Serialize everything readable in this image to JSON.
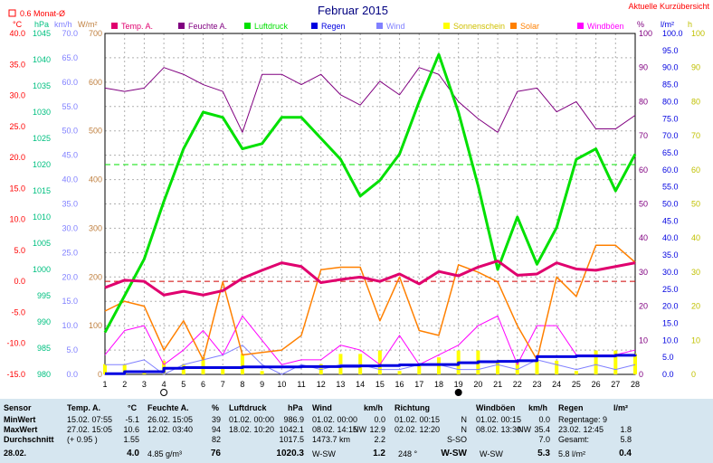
{
  "title": "Februar 2015",
  "corner_label": "Aktuelle Kurzübersicht",
  "monthly_avg_label": "0.6 Monat-Ø",
  "colors": {
    "temp": "#e0006e",
    "humidity": "#800080",
    "pressure": "#00e000",
    "rain": "#0000e0",
    "wind": "#8080ff",
    "sun": "#ffff00",
    "solar": "#ff8000",
    "gust": "#ff00ff",
    "red_axis": "#ff0000",
    "mint_axis": "#00c080",
    "tan_axis": "#c08040",
    "stats_bg": "#d6e6f0"
  },
  "legend": [
    {
      "label": "Temp. A.",
      "color": "#e0006e"
    },
    {
      "label": "Feuchte A.",
      "color": "#800080"
    },
    {
      "label": "Luftdruck",
      "color": "#00e000"
    },
    {
      "label": "Regen",
      "color": "#0000e0"
    },
    {
      "label": "Wind",
      "color": "#8080ff"
    },
    {
      "label": "Sonnenschein",
      "color": "#ffff00"
    },
    {
      "label": "Solar",
      "color": "#ff8000"
    },
    {
      "label": "Windböen",
      "color": "#ff00ff"
    }
  ],
  "axis_units": {
    "temp": "°C",
    "hpa": "hPa",
    "kmh": "km/h",
    "wm2": "W/m²",
    "pct": "%",
    "lm2": "l/m²",
    "h": "h"
  },
  "chart_data": {
    "type": "line",
    "title": "Februar 2015",
    "x": [
      1,
      2,
      3,
      4,
      5,
      6,
      7,
      8,
      9,
      10,
      11,
      12,
      13,
      14,
      15,
      16,
      17,
      18,
      19,
      20,
      21,
      22,
      23,
      24,
      25,
      26,
      27,
      28
    ],
    "xlim": [
      1,
      28
    ],
    "axes": {
      "temp_c": {
        "range": [
          -15,
          40
        ],
        "ticks": [
          "40.0",
          "35.0",
          "30.0",
          "25.0",
          "20.0",
          "15.0",
          "10.0",
          "5.0",
          "0.0",
          "-5.0",
          "-10.0",
          "-15.0"
        ]
      },
      "pressure_hpa": {
        "range": [
          980,
          1045
        ],
        "ticks": [
          "1045",
          "1040",
          "1035",
          "1030",
          "1025",
          "1020",
          "1015",
          "1010",
          "1005",
          "1000",
          "995",
          "990",
          "985",
          "980"
        ]
      },
      "wind_kmh": {
        "range": [
          0,
          70
        ],
        "ticks": [
          "70.0",
          "65.0",
          "60.0",
          "55.0",
          "50.0",
          "45.0",
          "40.0",
          "35.0",
          "30.0",
          "25.0",
          "20.0",
          "15.0",
          "10.0",
          "5.0",
          "0.0"
        ]
      },
      "solar_wm2": {
        "range": [
          0,
          700
        ],
        "ticks": [
          "700",
          "600",
          "500",
          "400",
          "300",
          "200",
          "100",
          "0"
        ]
      },
      "humidity_pct": {
        "range": [
          0,
          100
        ],
        "ticks": [
          "100",
          "90",
          "80",
          "70",
          "60",
          "50",
          "40",
          "30",
          "20",
          "10",
          "0"
        ]
      },
      "rain_lm2": {
        "range": [
          0,
          100
        ],
        "ticks": [
          "100.0",
          "95.0",
          "90.0",
          "85.0",
          "80.0",
          "75.0",
          "70.0",
          "65.0",
          "60.0",
          "55.0",
          "50.0",
          "45.0",
          "40.0",
          "35.0",
          "30.0",
          "25.0",
          "20.0",
          "15.0",
          "10.0",
          "5.0",
          "0.0"
        ]
      },
      "sun_h": {
        "range": [
          0,
          100
        ],
        "ticks": [
          "100",
          "90",
          "80",
          "70",
          "60",
          "50",
          "40",
          "30",
          "20",
          "10",
          "0"
        ]
      }
    },
    "reference_lines": [
      {
        "series": "Luftdruck",
        "value": 1020
      },
      {
        "series": "Temp. A.",
        "value": 0.0
      }
    ],
    "moon_phases": [
      {
        "x": 4,
        "phase": "full"
      },
      {
        "x": 19,
        "phase": "new"
      }
    ],
    "series": [
      {
        "name": "Temp. A.",
        "axis": "temp_c",
        "values": [
          -1.0,
          0.2,
          0.0,
          -2.2,
          -1.6,
          -2.2,
          -1.5,
          0.5,
          1.8,
          3.0,
          2.4,
          -0.2,
          0.3,
          0.7,
          0.0,
          1.2,
          -0.4,
          1.6,
          0.9,
          2.3,
          3.3,
          1.0,
          1.2,
          3.0,
          2.0,
          1.8,
          2.4,
          3.0
        ]
      },
      {
        "name": "Feuchte A.",
        "axis": "humidity_pct",
        "values": [
          84,
          83,
          84,
          90,
          88,
          85,
          83,
          71,
          88,
          88,
          85,
          88,
          82,
          79,
          86,
          82,
          90,
          88,
          80,
          75,
          71,
          83,
          84,
          77,
          80,
          72,
          72,
          76
        ]
      },
      {
        "name": "Luftdruck",
        "axis": "pressure_hpa",
        "values": [
          988,
          995,
          1002,
          1013,
          1023,
          1030,
          1029,
          1023,
          1024,
          1029,
          1029,
          1025,
          1021,
          1014,
          1017,
          1022,
          1032,
          1041,
          1030,
          1016,
          1000,
          1010,
          1001,
          1008,
          1021,
          1023,
          1015,
          1022
        ]
      },
      {
        "name": "Regen",
        "axis": "rain_lm2",
        "values": [
          0.2,
          0.8,
          0.8,
          1.8,
          2.0,
          2.0,
          2.0,
          2.2,
          2.2,
          2.2,
          2.3,
          2.3,
          2.4,
          2.5,
          2.6,
          2.8,
          2.9,
          2.9,
          3.4,
          3.7,
          3.8,
          4.0,
          5.2,
          5.2,
          5.4,
          5.4,
          5.6,
          5.8
        ]
      },
      {
        "name": "Wind",
        "axis": "wind_kmh",
        "values": [
          2,
          2,
          3,
          0,
          2,
          3,
          4,
          6,
          2,
          0,
          2,
          1,
          2,
          2,
          1,
          1,
          2,
          2,
          1,
          1,
          2,
          1,
          3,
          2,
          1,
          2,
          1,
          2
        ]
      },
      {
        "name": "Windböen",
        "axis": "wind_kmh",
        "values": [
          4,
          9,
          10,
          2,
          5,
          9,
          4,
          12,
          7,
          2,
          3,
          3,
          6,
          5,
          2,
          8,
          2,
          4,
          6,
          10,
          12,
          2,
          10,
          10,
          4,
          4,
          4,
          5
        ]
      },
      {
        "name": "Solar",
        "axis": "solar_wm2",
        "values": [
          130,
          150,
          140,
          50,
          110,
          30,
          190,
          40,
          45,
          50,
          80,
          215,
          220,
          220,
          110,
          200,
          90,
          80,
          225,
          210,
          190,
          100,
          30,
          200,
          160,
          265,
          265,
          230
        ]
      },
      {
        "name": "Sonnenschein",
        "axis": "sun_h",
        "values": [
          3,
          3,
          1,
          4,
          3,
          5,
          2,
          6,
          1,
          0,
          0,
          3,
          6,
          6,
          7,
          1,
          3,
          5,
          7,
          7,
          4,
          4,
          4,
          4,
          1,
          7,
          7,
          6
        ]
      }
    ]
  },
  "stats": {
    "headers": {
      "sensor": "Sensor",
      "temp": "Temp. A.",
      "temp_unit": "°C",
      "hum": "Feuchte A.",
      "hum_unit": "%",
      "press": "Luftdruck",
      "press_unit": "hPa",
      "wind": "Wind",
      "wind_unit": "km/h",
      "dir": "Richtung",
      "gust": "Windböen",
      "gust_unit": "km/h",
      "rain": "Regen",
      "rain_unit": "l/m²"
    },
    "rows": {
      "min": "MinWert",
      "max": "MaxWert",
      "avg": "Durchschnitt",
      "date": "28.02."
    },
    "temp": {
      "min_time": "15.02.  07:55",
      "min_val": "-5.1",
      "max_time": "27.02.  15:05",
      "max_val": "10.6",
      "avg_note": "(+ 0.95 )",
      "avg_val": "1.55",
      "cur_val": "4.0"
    },
    "hum": {
      "min_time": "26.02.  15:05",
      "min_val": "39",
      "max_time": "12.02.  03:40",
      "max_val": "94",
      "avg_val": "82",
      "cur_note": "4.85 g/m³",
      "cur_val": "76"
    },
    "press": {
      "min_time": "01.02.  00:00",
      "min_val": "986.9",
      "max_time": "18.02.  10:20",
      "max_val": "1042.1",
      "avg_val": "1017.5",
      "cur_val": "1020.3"
    },
    "wind": {
      "min_time": "01.02.  00:00",
      "min_val": "0.0",
      "max_time": "08.02.  14:15",
      "max_dir": "NW",
      "max_val": "12.9",
      "dist": "1473.7 km",
      "avg_val": "2.2",
      "cur_dir": "W-SW",
      "cur_val": "1.2"
    },
    "dir": {
      "min_time": "01.02.  00:15",
      "min_dir": "N",
      "max_time": "02.02.  12:20",
      "max_dir": "N",
      "avg_dir": "S-SO",
      "cur_deg": "248 °",
      "cur_dir": "W-SW"
    },
    "gust": {
      "min_time": "01.02.  00:15",
      "min_val": "0.0",
      "max_time": "08.02.  13:30",
      "max_dir": "NW",
      "max_val": "35.4",
      "avg_val": "7.0",
      "cur_dir": "W-SW",
      "cur_val": "5.3"
    },
    "rain": {
      "days_label": "Regentage: 9",
      "max_time": "23.02.  12:45",
      "max_val": "1.8",
      "total_label": "Gesamt:",
      "total_val": "5.8",
      "cur_note": "5.8 l/m²",
      "cur_val": "0.4"
    }
  }
}
